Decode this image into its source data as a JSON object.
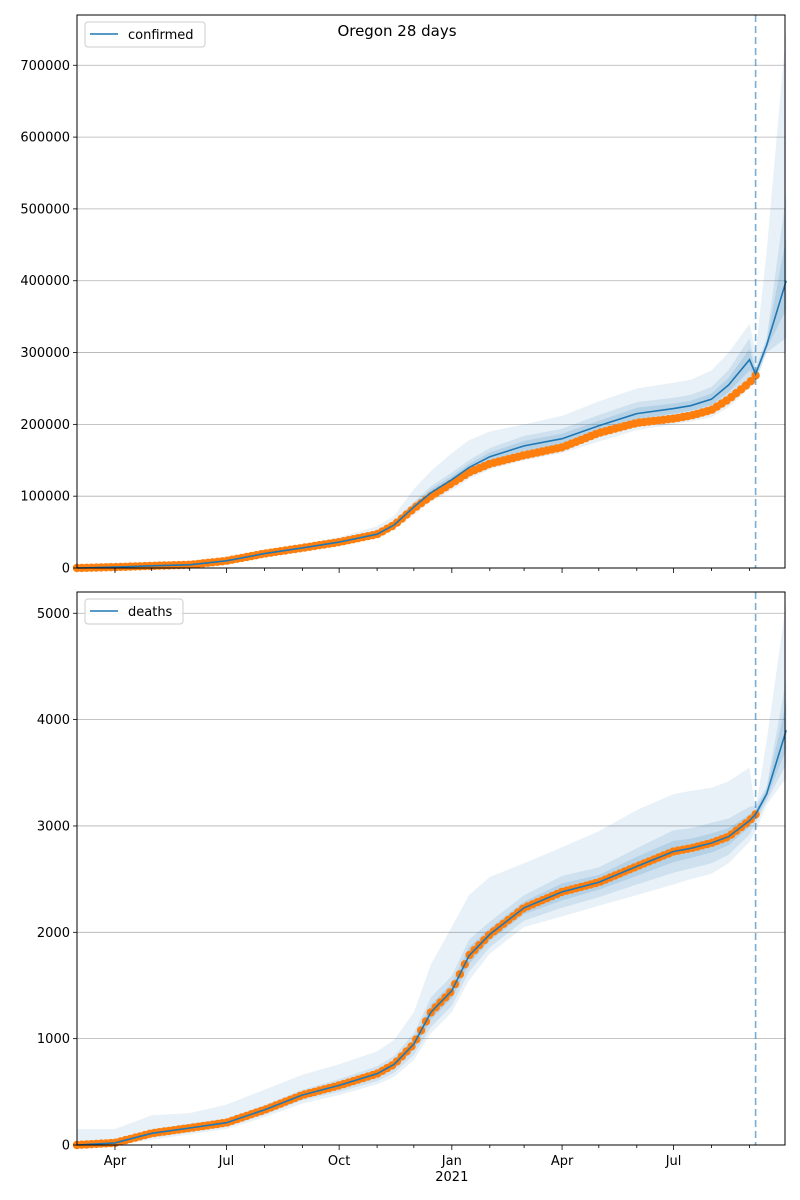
{
  "figure": {
    "title": "Oregon 28 days"
  },
  "chart_data": [
    {
      "type": "line",
      "legend": {
        "label": "confirmed",
        "placement": "top-left"
      },
      "grid": "y",
      "x_range": [
        "2020-03-01",
        "2021-09-30"
      ],
      "ylim": [
        0,
        770000
      ],
      "y_ticks": [
        0,
        100000,
        200000,
        300000,
        400000,
        500000,
        600000,
        700000
      ],
      "forecast_start": "2021-09-06",
      "colors": {
        "observed": "#ff7f0e",
        "forecast": "#1f77b4",
        "band": "#1f77b4",
        "divider": "#1f77b4"
      },
      "observed": {
        "x": [
          "2020-03-01",
          "2020-04-01",
          "2020-05-01",
          "2020-06-01",
          "2020-07-01",
          "2020-08-01",
          "2020-09-01",
          "2020-10-01",
          "2020-11-01",
          "2020-11-15",
          "2020-12-01",
          "2020-12-15",
          "2021-01-01",
          "2021-01-15",
          "2021-02-01",
          "2021-03-01",
          "2021-04-01",
          "2021-05-01",
          "2021-06-01",
          "2021-07-01",
          "2021-07-15",
          "2021-08-01",
          "2021-08-15",
          "2021-09-01",
          "2021-09-06"
        ],
        "y": [
          0,
          1200,
          3000,
          4500,
          10000,
          20000,
          28000,
          36000,
          47000,
          60000,
          83000,
          100000,
          118000,
          133000,
          145000,
          157000,
          168000,
          188000,
          202000,
          208000,
          212000,
          220000,
          235000,
          258000,
          268000
        ]
      },
      "forecast": {
        "x": [
          "2020-03-01",
          "2020-04-01",
          "2020-05-01",
          "2020-06-01",
          "2020-07-01",
          "2020-08-01",
          "2020-09-01",
          "2020-10-01",
          "2020-11-01",
          "2020-11-15",
          "2020-12-01",
          "2020-12-15",
          "2021-01-01",
          "2021-01-15",
          "2021-02-01",
          "2021-03-01",
          "2021-04-01",
          "2021-05-01",
          "2021-06-01",
          "2021-07-01",
          "2021-07-15",
          "2021-08-01",
          "2021-08-15",
          "2021-09-01",
          "2021-09-06",
          "2021-09-15",
          "2021-10-01"
        ],
        "y": [
          0,
          1200,
          3000,
          4500,
          10000,
          20000,
          28000,
          36000,
          47000,
          60000,
          85000,
          105000,
          123000,
          140000,
          155000,
          170000,
          180000,
          198000,
          215000,
          222000,
          226000,
          235000,
          255000,
          290000,
          270000,
          310000,
          400000
        ]
      },
      "bands": [
        {
          "name": "outer",
          "opacity": 0.1,
          "lower": [
            0,
            800,
            2000,
            3500,
            8000,
            17000,
            25000,
            32000,
            42000,
            54000,
            74000,
            92000,
            108000,
            124000,
            137000,
            150000,
            160000,
            176000,
            192000,
            200000,
            204000,
            210000,
            224000,
            250000,
            258000,
            300000,
            300000
          ],
          "upper": [
            2500,
            2500,
            4500,
            6500,
            13000,
            24000,
            33000,
            43000,
            58000,
            73000,
            110000,
            135000,
            160000,
            178000,
            190000,
            200000,
            212000,
            232000,
            250000,
            258000,
            262000,
            275000,
            300000,
            340000,
            300000,
            440000,
            750000
          ]
        },
        {
          "name": "middle",
          "opacity": 0.12,
          "lower": [
            0,
            900,
            2300,
            3800,
            8700,
            18000,
            26000,
            33500,
            44000,
            56000,
            78000,
            96000,
            113000,
            130000,
            143000,
            156000,
            166000,
            183000,
            199000,
            207000,
            211000,
            218000,
            234000,
            260000,
            262000,
            300000,
            320000
          ]
        },
        {
          "name": "inner",
          "opacity": 0.15,
          "lower": [
            0,
            1000,
            2600,
            4100,
            9300,
            19000,
            27000,
            34800,
            45500,
            58000,
            81000,
            100000,
            118000,
            135000,
            149000,
            163000,
            173000,
            191000,
            207000,
            215000,
            219000,
            227000,
            245000,
            275000,
            266000,
            305000,
            360000
          ]
        }
      ]
    },
    {
      "type": "line",
      "legend": {
        "label": "deaths",
        "placement": "top-left"
      },
      "grid": "y",
      "x_range": [
        "2020-03-01",
        "2021-09-30"
      ],
      "ylim": [
        0,
        5200
      ],
      "y_ticks": [
        0,
        1000,
        2000,
        3000,
        4000,
        5000
      ],
      "x_tick_labels": [
        "Apr",
        "Jul",
        "Oct",
        "Jan",
        "Apr",
        "Jul"
      ],
      "x_tick_dates": [
        "2020-04-01",
        "2020-07-01",
        "2020-10-01",
        "2021-01-01",
        "2021-04-01",
        "2021-07-01"
      ],
      "x_year_label": "2021",
      "forecast_start": "2021-09-06",
      "colors": {
        "observed": "#ff7f0e",
        "forecast": "#1f77b4",
        "band": "#1f77b4",
        "divider": "#1f77b4"
      },
      "observed": {
        "x": [
          "2020-03-01",
          "2020-04-01",
          "2020-05-01",
          "2020-06-01",
          "2020-07-01",
          "2020-08-01",
          "2020-09-01",
          "2020-10-01",
          "2020-11-01",
          "2020-11-15",
          "2020-12-01",
          "2020-12-15",
          "2021-01-01",
          "2021-01-15",
          "2021-02-01",
          "2021-03-01",
          "2021-04-01",
          "2021-05-01",
          "2021-06-01",
          "2021-07-01",
          "2021-07-15",
          "2021-08-01",
          "2021-08-15",
          "2021-09-01",
          "2021-09-06"
        ],
        "y": [
          0,
          20,
          110,
          160,
          210,
          330,
          470,
          560,
          670,
          760,
          950,
          1250,
          1450,
          1780,
          1980,
          2230,
          2380,
          2470,
          2620,
          2760,
          2790,
          2840,
          2900,
          3050,
          3110
        ]
      },
      "forecast": {
        "x": [
          "2020-03-01",
          "2020-04-01",
          "2020-05-01",
          "2020-06-01",
          "2020-07-01",
          "2020-08-01",
          "2020-09-01",
          "2020-10-01",
          "2020-11-01",
          "2020-11-15",
          "2020-12-01",
          "2020-12-15",
          "2021-01-01",
          "2021-01-15",
          "2021-02-01",
          "2021-03-01",
          "2021-04-01",
          "2021-05-01",
          "2021-06-01",
          "2021-07-01",
          "2021-07-15",
          "2021-08-01",
          "2021-08-15",
          "2021-09-01",
          "2021-09-06",
          "2021-09-15",
          "2021-10-01"
        ],
        "y": [
          0,
          20,
          110,
          160,
          210,
          330,
          470,
          560,
          670,
          760,
          950,
          1250,
          1450,
          1780,
          1980,
          2230,
          2380,
          2470,
          2620,
          2760,
          2790,
          2840,
          2900,
          3050,
          3110,
          3300,
          3900
        ]
      },
      "bands": [
        {
          "name": "outer",
          "opacity": 0.1,
          "lower": [
            0,
            0,
            50,
            100,
            150,
            260,
            390,
            470,
            570,
            640,
            800,
            1050,
            1250,
            1550,
            1800,
            2050,
            2150,
            2250,
            2350,
            2450,
            2500,
            2550,
            2650,
            2850,
            2950,
            3200,
            3450
          ],
          "upper": [
            150,
            150,
            280,
            300,
            380,
            520,
            660,
            760,
            880,
            990,
            1250,
            1700,
            2050,
            2350,
            2520,
            2650,
            2800,
            2950,
            3150,
            3300,
            3330,
            3360,
            3420,
            3550,
            3150,
            3800,
            5100
          ]
        },
        {
          "name": "middle",
          "opacity": 0.12,
          "lower": [
            0,
            5,
            70,
            120,
            170,
            285,
            420,
            500,
            600,
            680,
            850,
            1110,
            1310,
            1630,
            1860,
            2110,
            2230,
            2330,
            2450,
            2560,
            2600,
            2650,
            2730,
            2920,
            3030,
            3230,
            3580
          ]
        },
        {
          "name": "inner",
          "opacity": 0.15,
          "lower": [
            0,
            12,
            90,
            140,
            190,
            305,
            445,
            530,
            635,
            720,
            900,
            1180,
            1380,
            1700,
            1920,
            2170,
            2300,
            2400,
            2530,
            2660,
            2700,
            2750,
            2820,
            2990,
            3070,
            3260,
            3720
          ]
        }
      ]
    }
  ]
}
